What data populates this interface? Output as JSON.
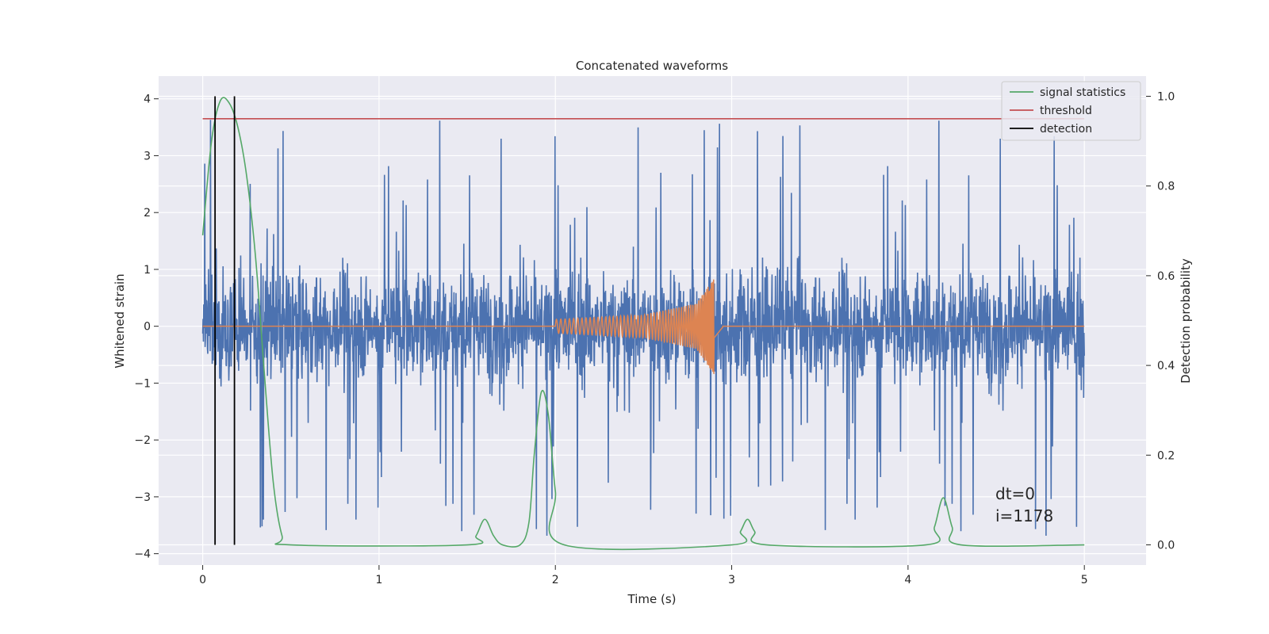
{
  "chart_data": {
    "type": "line",
    "title": "Concatenated waveforms",
    "xlabel": "Time (s)",
    "ylabel": "Whitened strain",
    "ylabel_right": "Detection probability",
    "xlim": [
      -0.25,
      5.35
    ],
    "ylim": [
      -4.2,
      4.4
    ],
    "ylim_right": [
      -0.045,
      1.045
    ],
    "xticks": [
      "0",
      "1",
      "2",
      "3",
      "4",
      "5"
    ],
    "yticks": [
      "−4",
      "−3",
      "−2",
      "−1",
      "0",
      "1",
      "2",
      "3",
      "4"
    ],
    "yticks_right": [
      "0.0",
      "0.2",
      "0.4",
      "0.6",
      "0.8",
      "1.0"
    ],
    "grid": true,
    "legend_position": "top-right",
    "legend": [
      {
        "label": "signal statistics",
        "color": "#55a868"
      },
      {
        "label": "threshold",
        "color": "#c44e52"
      },
      {
        "label": "detection",
        "color": "#000000"
      }
    ],
    "annotations": [
      "dt=0",
      "i=1178"
    ],
    "series": [
      {
        "name": "whitened strain",
        "axis": "left",
        "color": "#4c72b0",
        "x_range": [
          0,
          5
        ],
        "noise_envelope": 0.65,
        "spike_max": 3.9
      },
      {
        "name": "injected waveform",
        "axis": "left",
        "color": "#dd8452",
        "chirp_start": 2.0,
        "merger_time": 2.9,
        "peak_amplitude": 0.85,
        "x": [
          0,
          2.0,
          2.5,
          2.8,
          2.9,
          2.95,
          5.0
        ],
        "envelope": [
          0,
          0.12,
          0.2,
          0.4,
          0.85,
          0.05,
          0
        ]
      },
      {
        "name": "signal statistics",
        "axis": "right",
        "color": "#55a868",
        "x": [
          0,
          0.05,
          0.1,
          0.15,
          0.2,
          0.25,
          0.3,
          0.35,
          0.4,
          0.45,
          0.5,
          1.5,
          1.55,
          1.6,
          1.65,
          1.7,
          1.8,
          1.85,
          1.88,
          1.92,
          1.96,
          2.0,
          2.05,
          3.0,
          3.05,
          3.09,
          3.13,
          3.2,
          4.1,
          4.15,
          4.2,
          4.25,
          4.3,
          5.0
        ],
        "y": [
          0.69,
          0.9,
          0.99,
          0.985,
          0.93,
          0.82,
          0.64,
          0.38,
          0.14,
          0.02,
          0.0,
          0.0,
          0.02,
          0.057,
          0.02,
          0.0,
          0.0,
          0.05,
          0.2,
          0.34,
          0.29,
          0.12,
          0.0,
          0.0,
          0.03,
          0.057,
          0.03,
          0.0,
          0.0,
          0.04,
          0.105,
          0.04,
          0.0,
          0.0
        ]
      },
      {
        "name": "threshold",
        "axis": "right",
        "color": "#c44e52",
        "x": [
          0,
          5
        ],
        "y": [
          0.95,
          0.95
        ]
      },
      {
        "name": "detection",
        "axis": "right",
        "color": "#000000",
        "x": [
          0.07,
          0.18
        ],
        "y_range": [
          0.0,
          1.0
        ]
      }
    ]
  }
}
